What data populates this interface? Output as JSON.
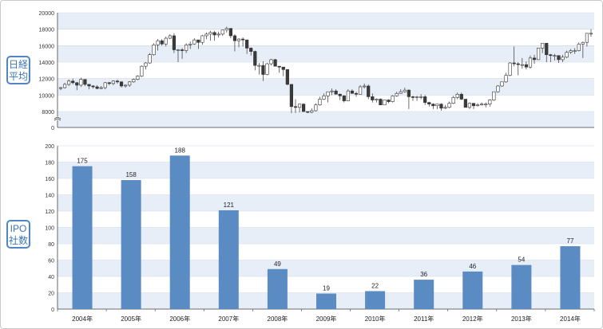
{
  "labels": {
    "top": [
      "日経",
      "平均"
    ],
    "bottom": [
      "IPO",
      "社数"
    ]
  },
  "colors": {
    "band": "#e8eef8",
    "grid": "#d0d8e6",
    "bar": "#5b8bc3",
    "candle_up": "#ffffff",
    "candle_down": "#3a3a3a",
    "label_border": "#4f86c6"
  },
  "chart_data": [
    {
      "type": "candlestick",
      "title": "",
      "ylim": [
        0,
        20000
      ],
      "yticks": [
        0,
        8000,
        10000,
        12000,
        14000,
        16000,
        18000,
        20000
      ],
      "axis_break": true,
      "grid": true,
      "x_period": "2004-01 to 2014-12 (monthly)",
      "series": [
        {
          "values": [
            [
              10800,
              11000,
              10600,
              10900
            ],
            [
              10900,
              11500,
              10800,
              11300
            ],
            [
              11300,
              11900,
              11100,
              11700
            ],
            [
              11700,
              12000,
              11300,
              11500
            ],
            [
              11500,
              11600,
              10600,
              11200
            ],
            [
              11200,
              12100,
              11000,
              11900
            ],
            [
              11900,
              11800,
              11100,
              11300
            ],
            [
              11300,
              11300,
              10700,
              11100
            ],
            [
              11100,
              11200,
              10800,
              11000
            ],
            [
              11000,
              11200,
              10700,
              10800
            ],
            [
              10800,
              11100,
              10700,
              10900
            ],
            [
              10900,
              11600,
              10700,
              11500
            ],
            [
              11500,
              11600,
              11200,
              11400
            ],
            [
              11400,
              11800,
              11200,
              11700
            ],
            [
              11700,
              11900,
              11400,
              11600
            ],
            [
              11600,
              11700,
              10900,
              11100
            ],
            [
              11100,
              11300,
              10900,
              11200
            ],
            [
              11200,
              11700,
              11000,
              11600
            ],
            [
              11600,
              12000,
              11500,
              11900
            ],
            [
              11900,
              12400,
              11800,
              12300
            ],
            [
              12300,
              13600,
              12200,
              13500
            ],
            [
              13500,
              14000,
              13100,
              13900
            ],
            [
              13900,
              15100,
              13800,
              14900
            ],
            [
              14900,
              16300,
              14800,
              16100
            ],
            [
              16100,
              16800,
              15400,
              16600
            ],
            [
              16600,
              16800,
              16000,
              16200
            ],
            [
              16200,
              17100,
              15900,
              16900
            ],
            [
              16900,
              17400,
              16800,
              17200
            ],
            [
              17200,
              17500,
              15100,
              15500
            ],
            [
              15500,
              15600,
              14000,
              15500
            ],
            [
              15500,
              15700,
              14400,
              15400
            ],
            [
              15400,
              16300,
              15100,
              16100
            ],
            [
              16100,
              16500,
              15600,
              16200
            ],
            [
              16200,
              16900,
              16100,
              16700
            ],
            [
              16700,
              16500,
              15600,
              16400
            ],
            [
              16400,
              17300,
              16100,
              17200
            ],
            [
              17200,
              17600,
              16800,
              17400
            ],
            [
              17400,
              17800,
              16600,
              17600
            ],
            [
              17600,
              17800,
              16600,
              17300
            ],
            [
              17300,
              17700,
              17000,
              17400
            ],
            [
              17400,
              17800,
              17200,
              17900
            ],
            [
              17900,
              18300,
              17600,
              18100
            ],
            [
              18100,
              18100,
              16900,
              17200
            ],
            [
              17200,
              17400,
              15300,
              16600
            ],
            [
              16600,
              16900,
              15800,
              16800
            ],
            [
              16800,
              17000,
              15900,
              16700
            ],
            [
              16700,
              16700,
              15000,
              15700
            ],
            [
              15700,
              15800,
              14800,
              15300
            ],
            [
              15300,
              15400,
              13000,
              13600
            ],
            [
              13600,
              13900,
              12500,
              13600
            ],
            [
              13600,
              14100,
              11700,
              12500
            ],
            [
              12500,
              13900,
              12400,
              13800
            ],
            [
              13800,
              14400,
              13600,
              14300
            ],
            [
              14300,
              14400,
              13500,
              13500
            ],
            [
              13500,
              13500,
              12700,
              13400
            ],
            [
              13400,
              13400,
              12300,
              13100
            ],
            [
              13100,
              13100,
              11200,
              11300
            ],
            [
              11300,
              11300,
              7100,
              8600
            ],
            [
              8600,
              9500,
              7200,
              8500
            ],
            [
              8500,
              8900,
              7500,
              8900
            ],
            [
              8900,
              9000,
              7700,
              7990
            ],
            [
              7990,
              8000,
              7100,
              7570
            ],
            [
              7570,
              8400,
              7000,
              8100
            ],
            [
              8100,
              9000,
              8000,
              8800
            ],
            [
              8800,
              9800,
              8700,
              9500
            ],
            [
              9500,
              10200,
              9400,
              9900
            ],
            [
              9900,
              10100,
              9100,
              10400
            ],
            [
              10400,
              10800,
              10000,
              10500
            ],
            [
              10500,
              10700,
              10100,
              10100
            ],
            [
              10100,
              10200,
              9400,
              9900
            ],
            [
              9900,
              10000,
              9100,
              9300
            ],
            [
              9300,
              10700,
              9400,
              10500
            ],
            [
              10500,
              10700,
              10200,
              10200
            ],
            [
              10200,
              10400,
              9800,
              10100
            ],
            [
              10100,
              11200,
              10400,
              11000
            ],
            [
              11000,
              11400,
              10800,
              11100
            ],
            [
              11100,
              11300,
              9500,
              9800
            ],
            [
              9800,
              10200,
              9100,
              9400
            ],
            [
              9400,
              9600,
              9100,
              9500
            ],
            [
              9500,
              9600,
              8800,
              8800
            ],
            [
              8800,
              9400,
              8900,
              9400
            ],
            [
              9400,
              9500,
              9000,
              9200
            ],
            [
              9200,
              10000,
              9100,
              9900
            ],
            [
              9900,
              10400,
              9800,
              10200
            ],
            [
              10200,
              10700,
              10200,
              10400
            ],
            [
              10400,
              10900,
              10300,
              10600
            ],
            [
              10600,
              10700,
              8300,
              9800
            ],
            [
              9800,
              9900,
              9300,
              9700
            ],
            [
              9700,
              9900,
              9300,
              9800
            ],
            [
              9800,
              10100,
              9500,
              9800
            ],
            [
              9800,
              10000,
              8800,
              9100
            ],
            [
              9100,
              9200,
              8600,
              8900
            ],
            [
              8900,
              9000,
              8300,
              8700
            ],
            [
              8700,
              8800,
              8300,
              8900
            ],
            [
              8900,
              9000,
              8100,
              8400
            ],
            [
              8400,
              8800,
              8300,
              8500
            ],
            [
              8500,
              9200,
              8400,
              9000
            ],
            [
              9000,
              9900,
              8900,
              9700
            ],
            [
              9700,
              10300,
              9500,
              10100
            ],
            [
              10100,
              10300,
              9400,
              9500
            ],
            [
              9500,
              9500,
              8500,
              8500
            ],
            [
              8500,
              9100,
              8300,
              9000
            ],
            [
              9000,
              9000,
              8300,
              8700
            ],
            [
              8700,
              9000,
              8600,
              8800
            ],
            [
              8800,
              9100,
              8700,
              8900
            ],
            [
              8900,
              9100,
              8500,
              8900
            ],
            [
              8900,
              9500,
              8600,
              9400
            ],
            [
              9400,
              10400,
              9300,
              10400
            ],
            [
              10400,
              11200,
              10300,
              11100
            ],
            [
              11100,
              11600,
              11000,
              11600
            ],
            [
              11600,
              12700,
              11500,
              12400
            ],
            [
              12400,
              14000,
              12300,
              13900
            ],
            [
              13900,
              15900,
              13500,
              13800
            ],
            [
              13800,
              14000,
              12400,
              13700
            ],
            [
              13700,
              14500,
              13200,
              13700
            ],
            [
              13700,
              14100,
              13100,
              13400
            ],
            [
              13400,
              14800,
              13200,
              14500
            ],
            [
              14500,
              14900,
              13800,
              14300
            ],
            [
              14300,
              15700,
              14300,
              15700
            ],
            [
              15700,
              16300,
              15100,
              16300
            ],
            [
              16300,
              16200,
              14000,
              14900
            ],
            [
              14900,
              15000,
              14000,
              14800
            ],
            [
              14800,
              15000,
              14200,
              14800
            ],
            [
              14800,
              14600,
              13900,
              14300
            ],
            [
              14300,
              14900,
              14000,
              14600
            ],
            [
              14600,
              15400,
              14500,
              15200
            ],
            [
              15200,
              15600,
              15000,
              15400
            ],
            [
              15400,
              15700,
              15000,
              15400
            ],
            [
              15400,
              16400,
              15300,
              16200
            ],
            [
              16200,
              16500,
              14500,
              16400
            ],
            [
              16400,
              17500,
              15900,
              17500
            ],
            [
              17500,
              18000,
              17100,
              17500
            ]
          ]
        }
      ]
    },
    {
      "type": "bar",
      "title": "",
      "categories": [
        "2004年",
        "2005年",
        "2006年",
        "2007年",
        "2008年",
        "2009年",
        "2010年",
        "2011年",
        "2012年",
        "2013年",
        "2014年"
      ],
      "values": [
        175,
        158,
        188,
        121,
        49,
        19,
        22,
        36,
        46,
        54,
        77
      ],
      "data_labels": [
        "175",
        "158",
        "188",
        "121",
        "49",
        "19",
        "22",
        "36",
        "46",
        "54",
        "77"
      ],
      "ylim": [
        0,
        200
      ],
      "yticks": [
        0,
        20,
        40,
        60,
        80,
        100,
        120,
        140,
        160,
        180,
        200
      ],
      "grid": true
    }
  ]
}
